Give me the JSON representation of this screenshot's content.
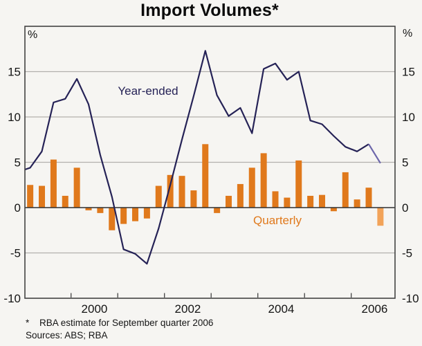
{
  "title": "Import Volumes*",
  "footer": {
    "marker": "*",
    "note": "RBA estimate for September quarter 2006",
    "sources": "Sources: ABS; RBA"
  },
  "chart_data": {
    "type": "combo-bar-line",
    "title": "Import Volumes*",
    "unit_left": "%",
    "unit_right": "%",
    "ylim": [
      -10,
      20
    ],
    "ytick_labels": [
      "15",
      "10",
      "5",
      "0",
      "-5",
      "-10"
    ],
    "ytick_values": [
      15,
      10,
      5,
      0,
      -5,
      -10
    ],
    "gridline_values": [
      15,
      10,
      5,
      -5
    ],
    "grid": true,
    "x_range_years": [
      1999.0,
      2006.94
    ],
    "year_tick_values": [
      2000,
      2001,
      2002,
      2003,
      2004,
      2005,
      2006
    ],
    "year_labels": [
      {
        "label": "2000",
        "at": 2000.5
      },
      {
        "label": "2002",
        "at": 2002.5
      },
      {
        "label": "2004",
        "at": 2004.5
      },
      {
        "label": "2006",
        "at": 2006.5
      }
    ],
    "x_quarters": [
      "1999Q1",
      "1999Q2",
      "1999Q3",
      "1999Q4",
      "2000Q1",
      "2000Q2",
      "2000Q3",
      "2000Q4",
      "2001Q1",
      "2001Q2",
      "2001Q3",
      "2001Q4",
      "2002Q1",
      "2002Q2",
      "2002Q3",
      "2002Q4",
      "2003Q1",
      "2003Q2",
      "2003Q3",
      "2003Q4",
      "2004Q1",
      "2004Q2",
      "2004Q3",
      "2004Q4",
      "2005Q1",
      "2005Q2",
      "2005Q3",
      "2005Q4",
      "2006Q1",
      "2006Q2",
      "2006Q3"
    ],
    "estimate_points": 1,
    "estimate_note": "Final quarter (2006Q3) shown in lighter shade as RBA estimate",
    "series": [
      {
        "name": "Year-ended",
        "type": "line",
        "color": "#252256",
        "estimate_color": "#6C66AA",
        "left_edge_value": 4.2,
        "values": [
          4.4,
          6.2,
          11.6,
          12.0,
          14.2,
          11.4,
          5.8,
          1.2,
          -4.6,
          -5.1,
          -6.2,
          -2.3,
          2.5,
          7.5,
          12.3,
          17.3,
          12.4,
          10.1,
          11.0,
          8.2,
          15.3,
          15.9,
          14.1,
          15.0,
          9.6,
          9.2,
          7.9,
          6.7,
          6.2,
          7.0,
          4.9
        ]
      },
      {
        "name": "Quarterly",
        "type": "bar",
        "color": "#E0791C",
        "estimate_color": "#F2A359",
        "values": [
          2.5,
          2.4,
          5.3,
          1.3,
          4.4,
          -0.3,
          -0.6,
          -2.5,
          -1.8,
          -1.5,
          -1.2,
          2.4,
          3.6,
          3.5,
          1.9,
          7.0,
          -0.6,
          1.3,
          2.6,
          4.4,
          6.0,
          1.8,
          1.1,
          5.2,
          1.3,
          1.4,
          -0.4,
          3.9,
          0.9,
          2.2,
          -2.0
        ]
      }
    ],
    "annotations": [
      {
        "text": "Year-ended",
        "series": 0
      },
      {
        "text": "Quarterly",
        "series": 1
      }
    ],
    "colors": {
      "background": "#f6f5f2",
      "gridline": "#b2b0ad",
      "zero_line": "#2f2f2f",
      "frame": "#424242",
      "text": "#141414"
    }
  }
}
